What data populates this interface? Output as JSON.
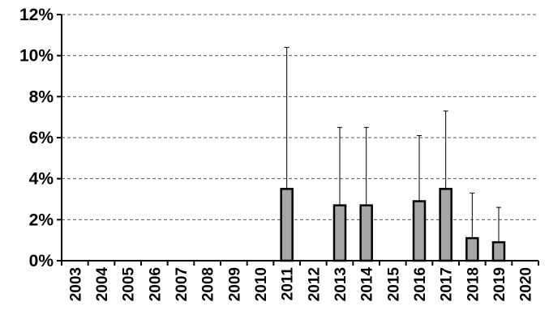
{
  "chart_data": {
    "type": "bar",
    "title": "",
    "xlabel": "",
    "ylabel": "",
    "ylim": [
      0,
      12
    ],
    "y_ticks": [
      "0%",
      "2%",
      "4%",
      "6%",
      "8%",
      "10%",
      "12%"
    ],
    "grid": "horizontal dashed",
    "categories": [
      "2003",
      "2004",
      "2005",
      "2006",
      "2007",
      "2008",
      "2009",
      "2010",
      "2011",
      "2012",
      "2013",
      "2014",
      "2015",
      "2016",
      "2017",
      "2018",
      "2019",
      "2020"
    ],
    "values": [
      null,
      null,
      null,
      null,
      null,
      null,
      null,
      null,
      3.5,
      null,
      2.7,
      2.7,
      null,
      2.9,
      3.5,
      1.1,
      0.9,
      null
    ],
    "error_upper": [
      null,
      null,
      null,
      null,
      null,
      null,
      null,
      null,
      10.4,
      null,
      6.5,
      6.5,
      null,
      6.1,
      7.3,
      3.3,
      2.6,
      null
    ],
    "bar_color": "#a6a6a6",
    "bar_outline": "#000000"
  }
}
